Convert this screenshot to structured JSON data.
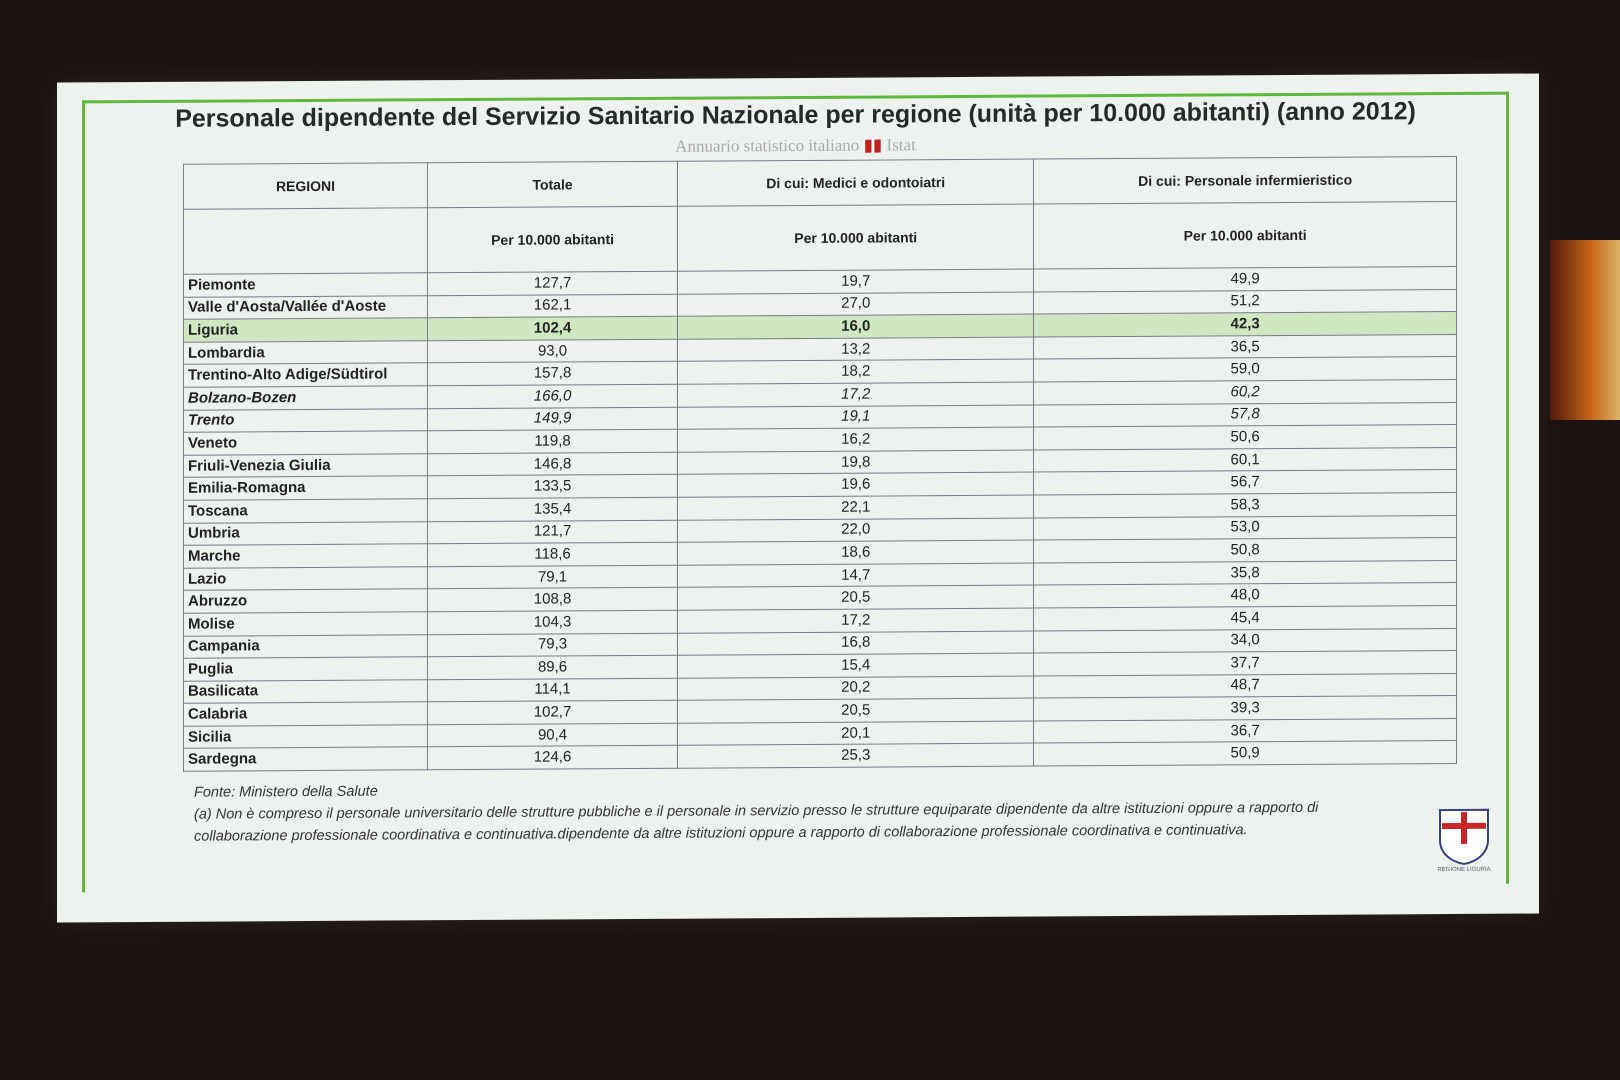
{
  "title": "Personale dipendente del Servizio Sanitario Nazionale per regione (unità per 10.000 abitanti) (anno 2012)",
  "source_line": {
    "text": "Annuario statistico italiano",
    "brand": "Istat"
  },
  "table": {
    "headers": [
      "REGIONI",
      "Totale",
      "Di cui: Medici e odontoiatri",
      "Di cui: Personale infermieristico"
    ],
    "subheaders": [
      "",
      "Per 10.000 abitanti",
      "Per 10.000 abitanti",
      "Per 10.000 abitanti"
    ],
    "rows": [
      {
        "region": "Piemonte",
        "totale": "127,7",
        "medici": "19,7",
        "infermieri": "49,9"
      },
      {
        "region": "Valle d'Aosta/Vallée d'Aoste",
        "totale": "162,1",
        "medici": "27,0",
        "infermieri": "51,2"
      },
      {
        "region": "Liguria",
        "totale": "102,4",
        "medici": "16,0",
        "infermieri": "42,3",
        "highlight": true
      },
      {
        "region": "Lombardia",
        "totale": "93,0",
        "medici": "13,2",
        "infermieri": "36,5"
      },
      {
        "region": "Trentino-Alto Adige/Südtirol",
        "totale": "157,8",
        "medici": "18,2",
        "infermieri": "59,0"
      },
      {
        "region": "Bolzano-Bozen",
        "totale": "166,0",
        "medici": "17,2",
        "infermieri": "60,2",
        "italic": true
      },
      {
        "region": "Trento",
        "totale": "149,9",
        "medici": "19,1",
        "infermieri": "57,8",
        "italic": true
      },
      {
        "region": "Veneto",
        "totale": "119,8",
        "medici": "16,2",
        "infermieri": "50,6"
      },
      {
        "region": "Friuli-Venezia Giulia",
        "totale": "146,8",
        "medici": "19,8",
        "infermieri": "60,1"
      },
      {
        "region": "Emilia-Romagna",
        "totale": "133,5",
        "medici": "19,6",
        "infermieri": "56,7"
      },
      {
        "region": "Toscana",
        "totale": "135,4",
        "medici": "22,1",
        "infermieri": "58,3"
      },
      {
        "region": "Umbria",
        "totale": "121,7",
        "medici": "22,0",
        "infermieri": "53,0"
      },
      {
        "region": "Marche",
        "totale": "118,6",
        "medici": "18,6",
        "infermieri": "50,8"
      },
      {
        "region": "Lazio",
        "totale": "79,1",
        "medici": "14,7",
        "infermieri": "35,8"
      },
      {
        "region": "Abruzzo",
        "totale": "108,8",
        "medici": "20,5",
        "infermieri": "48,0"
      },
      {
        "region": "Molise",
        "totale": "104,3",
        "medici": "17,2",
        "infermieri": "45,4"
      },
      {
        "region": "Campania",
        "totale": "79,3",
        "medici": "16,8",
        "infermieri": "34,0"
      },
      {
        "region": "Puglia",
        "totale": "89,6",
        "medici": "15,4",
        "infermieri": "37,7"
      },
      {
        "region": "Basilicata",
        "totale": "114,1",
        "medici": "20,2",
        "infermieri": "48,7"
      },
      {
        "region": "Calabria",
        "totale": "102,7",
        "medici": "20,5",
        "infermieri": "39,3"
      },
      {
        "region": "Sicilia",
        "totale": "90,4",
        "medici": "20,1",
        "infermieri": "36,7"
      },
      {
        "region": "Sardegna",
        "totale": "124,6",
        "medici": "25,3",
        "infermieri": "50,9"
      }
    ],
    "highlight_color": "#cfe8c2"
  },
  "footnotes": {
    "source": "Fonte: Ministero della Salute",
    "note": "(a) Non è compreso il personale universitario delle strutture pubbliche e il personale in servizio presso le strutture equiparate dipendente da altre istituzioni oppure a rapporto di collaborazione professionale coordinativa e continuativa.dipendente da altre istituzioni oppure a rapporto di collaborazione professionale coordinativa e continuativa."
  },
  "logo": {
    "text": "REGIONE LIGURIA"
  },
  "colors": {
    "frame": "#5db83c",
    "slide_bg": "#eef2ee"
  }
}
